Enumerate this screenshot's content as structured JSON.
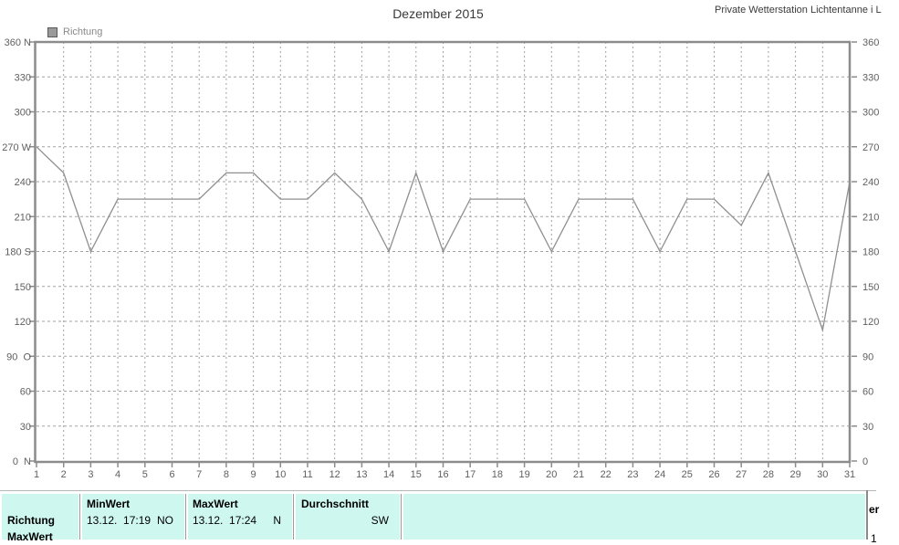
{
  "page": {
    "title": "Dezember 2015",
    "station_header": "Private Wetterstation Lichtentanne i L"
  },
  "legend": {
    "label": "Richtung",
    "swatch_color": "#9a9a9a"
  },
  "colors": {
    "axis": "#8c8c8c",
    "grid": "#a2a2a2",
    "line": "#8f8f8f",
    "axis_text": "#5f5f5f",
    "table_bg": "#cef7f0"
  },
  "chart_data": {
    "type": "line",
    "title": "Dezember 2015",
    "legend_position": "top-left",
    "grid": true,
    "x": [
      1,
      2,
      3,
      4,
      5,
      6,
      7,
      8,
      9,
      10,
      11,
      12,
      13,
      14,
      15,
      16,
      17,
      18,
      19,
      20,
      21,
      22,
      23,
      24,
      25,
      26,
      27,
      28,
      29,
      30,
      31
    ],
    "series": [
      {
        "name": "Richtung",
        "values": [
          270,
          247.5,
          180,
          225,
          225,
          225,
          225,
          247.5,
          247.5,
          225,
          225,
          247.5,
          225,
          180,
          247.5,
          180,
          225,
          225,
          225,
          180,
          225,
          225,
          225,
          180,
          225,
          225,
          202.5,
          247.5,
          180,
          112.5,
          240
        ]
      }
    ],
    "ylim": [
      0,
      360
    ],
    "ytick_values": [
      360,
      330,
      300,
      270,
      240,
      210,
      180,
      150,
      120,
      90,
      60,
      30,
      0
    ],
    "ytick_labels_left": [
      "360 N",
      "330",
      "300",
      "270 W",
      "240",
      "210",
      "180 S",
      "150",
      "120",
      "90  O",
      "60",
      "30",
      "0  N"
    ],
    "ytick_labels_right": [
      "360",
      "330",
      "300",
      "270",
      "240",
      "210",
      "180",
      "150",
      "120",
      "90",
      "60",
      "30",
      "0"
    ]
  },
  "table": {
    "row_header_line1": "Richtung",
    "row_header_line2": "MaxWert",
    "cells": [
      {
        "header": "MinWert",
        "datetime": "13.12.  17:19",
        "value": "NO"
      },
      {
        "header": "MaxWert",
        "datetime": "13.12.  17:24",
        "value": "N"
      },
      {
        "header": "Durchschnitt",
        "datetime": "",
        "value": "SW"
      }
    ]
  },
  "right_edge_fragments": {
    "header_fragment": "er",
    "value_fragment": "1"
  }
}
